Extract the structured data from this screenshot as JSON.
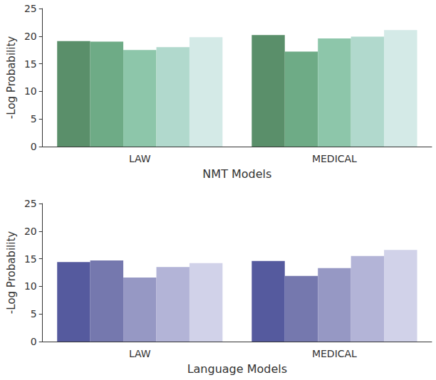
{
  "chart_data": [
    {
      "type": "bar",
      "x_label": "NMT Models",
      "y_label": "-Log Probability",
      "categories": [
        "LAW",
        "MEDICAL"
      ],
      "series": [
        {
          "color": "#5a8f6a",
          "values": [
            19.1,
            20.2
          ]
        },
        {
          "color": "#6eab86",
          "values": [
            19.0,
            17.2
          ]
        },
        {
          "color": "#8dc6aa",
          "values": [
            17.5,
            19.6
          ]
        },
        {
          "color": "#b1d9cd",
          "values": [
            18.0,
            19.9
          ]
        },
        {
          "color": "#d4eae7",
          "values": [
            19.8,
            21.1
          ]
        }
      ],
      "ylim": [
        0,
        25
      ],
      "yticks": [
        0,
        5,
        10,
        15,
        20,
        25
      ],
      "grid": false
    },
    {
      "type": "bar",
      "x_label": "Language Models",
      "y_label": "-Log Probability",
      "categories": [
        "LAW",
        "MEDICAL"
      ],
      "series": [
        {
          "color": "#555a9e",
          "values": [
            14.4,
            14.6
          ]
        },
        {
          "color": "#7578ae",
          "values": [
            14.7,
            11.9
          ]
        },
        {
          "color": "#9698c4",
          "values": [
            11.6,
            13.3
          ]
        },
        {
          "color": "#b3b4d7",
          "values": [
            13.5,
            15.5
          ]
        },
        {
          "color": "#d1d2e9",
          "values": [
            14.2,
            16.6
          ]
        }
      ],
      "ylim": [
        0,
        25
      ],
      "yticks": [
        0,
        5,
        10,
        15,
        20,
        25
      ],
      "grid": false
    }
  ]
}
